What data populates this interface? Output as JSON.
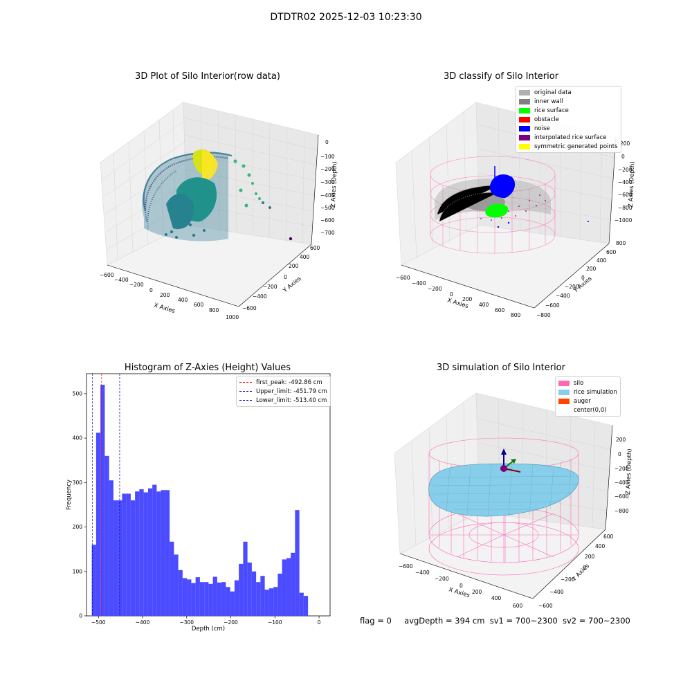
{
  "suptitle": "DTDTR02 2025-12-03 10:23:30",
  "status_line": {
    "flag": "flag = 0",
    "avg_depth": "avgDepth = 394 cm",
    "sv1": "sv1 = 700~2300",
    "sv2": "sv2 = 700~2300"
  },
  "chart_data": [
    {
      "type": "scatter",
      "title": "3D Plot of Silo Interior(row data)",
      "xlabel": "X Axies",
      "ylabel": "Y Axies",
      "zlabel": "Z Axies (Depth)",
      "x_ticks": [
        "−600",
        "−400",
        "−200",
        "0",
        "200",
        "400",
        "600",
        "800",
        "1000"
      ],
      "y_ticks": [
        "−600",
        "−400",
        "−200",
        "0",
        "200",
        "400",
        "600"
      ],
      "z_ticks": [
        "0",
        "−100",
        "−200",
        "−300",
        "−400",
        "−500",
        "−600",
        "−700"
      ],
      "colormap": "viridis"
    },
    {
      "type": "scatter",
      "title": "3D classify of Silo Interior",
      "xlabel": "X Axies",
      "ylabel": "Y Axies",
      "zlabel": "Z Axies (Depth)",
      "x_ticks": [
        "−600",
        "−400",
        "−200",
        "0",
        "200",
        "400",
        "600",
        "800"
      ],
      "y_ticks": [
        "−800",
        "−600",
        "−400",
        "−200",
        "0",
        "200",
        "400",
        "600",
        "800"
      ],
      "z_ticks": [
        "200",
        "0",
        "−200",
        "−400",
        "−600",
        "−800",
        "−1000"
      ],
      "legend": [
        {
          "label": "original data",
          "color": "#b0b0b0"
        },
        {
          "label": "inner wall",
          "color": "#808080"
        },
        {
          "label": "rice surface",
          "color": "#00ff00"
        },
        {
          "label": "obstacle",
          "color": "#ff0000"
        },
        {
          "label": "noise",
          "color": "#0000ff"
        },
        {
          "label": "interpolated rice surface",
          "color": "#800080"
        },
        {
          "label": "symmetric generated points",
          "color": "#ffff00"
        }
      ]
    },
    {
      "type": "bar",
      "title": "Histogram of Z-Axies (Height) Values",
      "xlabel": "Depth (cm)",
      "ylabel": "Frequency",
      "xlim": [
        -527,
        25
      ],
      "ylim": [
        0,
        545
      ],
      "x_ticks": [
        -500,
        -400,
        -300,
        -200,
        -100,
        0
      ],
      "x_tick_labels": [
        "−500",
        "−400",
        "−300",
        "−200",
        "−100",
        "0"
      ],
      "y_ticks": [
        0,
        100,
        200,
        300,
        400,
        500
      ],
      "bin_start": -515,
      "bin_width": 9.8,
      "values": [
        160,
        412,
        520,
        360,
        305,
        260,
        260,
        275,
        275,
        260,
        280,
        285,
        278,
        287,
        295,
        280,
        283,
        283,
        167,
        138,
        103,
        85,
        82,
        74,
        87,
        76,
        76,
        72,
        88,
        75,
        76,
        65,
        55,
        80,
        117,
        167,
        120,
        100,
        76,
        90,
        59,
        62,
        65,
        95,
        127,
        130,
        142,
        238,
        52,
        45
      ],
      "bar_color": "#4b4bff",
      "vlines": [
        {
          "label": "first_peak: -492.86 cm",
          "x": -492.86,
          "color": "#ff0000"
        },
        {
          "label": "Upper_limit: -451.79 cm",
          "x": -451.79,
          "color": "#0000aa"
        },
        {
          "label": "Lower_limit: -513.40 cm",
          "x": -513.4,
          "color": "#0000aa"
        }
      ],
      "legend_position": "upper right"
    },
    {
      "type": "surface",
      "title": "3D simulation of Silo Interior",
      "xlabel": "X Axies",
      "ylabel": "Y Axies",
      "zlabel": "Z Axies (Depth)",
      "x_ticks": [
        "−600",
        "−400",
        "−200",
        "0",
        "200",
        "400",
        "600"
      ],
      "y_ticks": [
        "−600",
        "−400",
        "−200",
        "0",
        "200",
        "400",
        "600"
      ],
      "z_ticks": [
        "200",
        "0",
        "−200",
        "−400",
        "−600",
        "−800"
      ],
      "legend": [
        {
          "label": "silo",
          "color": "#ff69b4"
        },
        {
          "label": "rice simulation",
          "color": "#87ceeb"
        },
        {
          "label": "auger",
          "color": "#ff4500"
        },
        {
          "label": "center(0,0)",
          "color": ""
        }
      ]
    }
  ]
}
